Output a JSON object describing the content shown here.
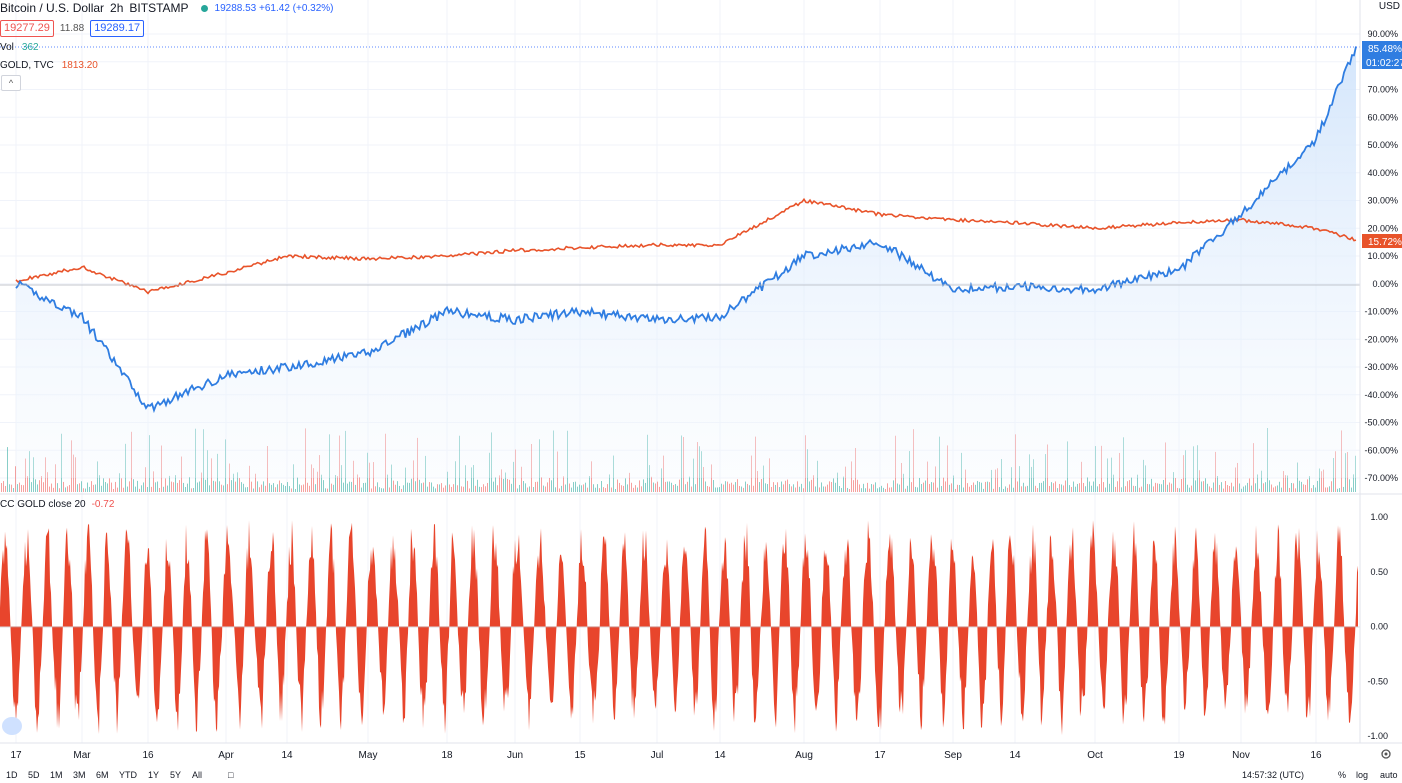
{
  "header": {
    "symbol_title": "Bitcoin / U.S. Dollar",
    "interval": "2h",
    "exchange": "BITSTAMP",
    "last_change_text": "19288.53 +61.42 (+0.32%)",
    "bid": "19277.29",
    "spread": "11.88",
    "ask": "19289.17"
  },
  "legends": {
    "volume_label": "Vol",
    "volume_value": "362",
    "gold_label": "GOLD, TVC",
    "gold_value": "1813.20",
    "cc_label": "CC GOLD close 20",
    "cc_value": "-0.72"
  },
  "price_scale": {
    "currency_label": "USD",
    "btc_last_label": "85.48%",
    "countdown_label": "01:02:27",
    "gold_last_label": "15.72%",
    "ticks": [
      "90.00%",
      "80.00%",
      "70.00%",
      "60.00%",
      "50.00%",
      "40.00%",
      "30.00%",
      "20.00%",
      "10.00%",
      "0.00%",
      "-10.00%",
      "-20.00%",
      "-30.00%",
      "-40.00%",
      "-50.00%",
      "-60.00%",
      "-70.00%"
    ]
  },
  "cc_scale": {
    "ticks": [
      "1.00",
      "0.50",
      "0.00",
      "-0.50",
      "-1.00"
    ]
  },
  "time_axis": {
    "ticks": [
      "17",
      "Mar",
      "16",
      "Apr",
      "14",
      "May",
      "18",
      "Jun",
      "15",
      "Jul",
      "14",
      "Aug",
      "17",
      "Sep",
      "14",
      "Oct",
      "19",
      "Nov",
      "16"
    ]
  },
  "bottom_toolbar": {
    "ranges": [
      "1D",
      "5D",
      "1M",
      "3M",
      "6M",
      "YTD",
      "1Y",
      "5Y",
      "All"
    ],
    "clock": "14:57:32 (UTC)",
    "percent_label": "%",
    "log_label": "log",
    "auto_label": "auto"
  },
  "colors": {
    "btc_line": "#2f7de1",
    "gold_line": "#e8532a",
    "cc_fill": "#e8452c",
    "vol_up": "#26a69a",
    "vol_down": "#ef5350",
    "grid": "#f0f3fa"
  },
  "chart_data": [
    {
      "type": "line",
      "x": [
        "17",
        "Mar",
        "16",
        "Apr",
        "14",
        "May",
        "18",
        "Jun",
        "15",
        "Jul",
        "14",
        "Aug",
        "17",
        "Sep",
        "14",
        "Oct",
        "19",
        "Nov",
        "16",
        "end"
      ],
      "series": [
        {
          "name": "Bitcoin / U.S. Dollar",
          "unit": "%",
          "values": [
            0,
            -12,
            -45,
            -33,
            -30,
            -25,
            -10,
            -13,
            -10,
            -13,
            -12,
            10,
            15,
            -2,
            -1,
            -2,
            5,
            25,
            52,
            85.48
          ]
        },
        {
          "name": "GOLD, TVC",
          "unit": "%",
          "values": [
            1,
            6,
            -3,
            4,
            10,
            9,
            10,
            12,
            13,
            14,
            14,
            30,
            25,
            23,
            22,
            20,
            22,
            23,
            20,
            15.72
          ]
        }
      ],
      "ylim": [
        -70,
        90
      ],
      "grid": true
    },
    {
      "type": "area",
      "name": "CC GOLD close 20",
      "ylim": [
        -1,
        1
      ],
      "last_value": -0.72,
      "seed": 41
    }
  ]
}
